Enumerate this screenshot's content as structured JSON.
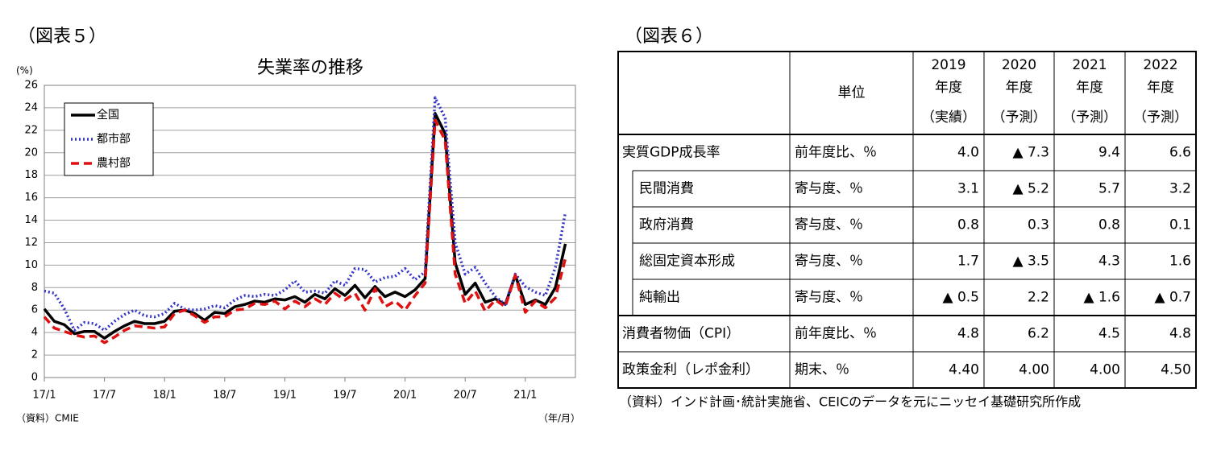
{
  "chart_data": {
    "type": "line",
    "figure_label": "（図表５）",
    "title": "失業率の推移",
    "y_unit": "(%)",
    "x_unit": "（年/月）",
    "source": "（資料）CMIE",
    "categories": [
      "17/1",
      null,
      null,
      null,
      null,
      null,
      "17/7",
      null,
      null,
      null,
      null,
      null,
      "18/1",
      null,
      null,
      null,
      null,
      null,
      "18/7",
      null,
      null,
      null,
      null,
      null,
      "19/1",
      null,
      null,
      null,
      null,
      null,
      "19/7",
      null,
      null,
      null,
      null,
      null,
      "20/1",
      null,
      null,
      null,
      null,
      null,
      "20/7",
      null,
      null,
      null,
      null,
      null,
      "21/1",
      null,
      null,
      null,
      null
    ],
    "ylim": [
      0,
      26
    ],
    "yticks": [
      0,
      2,
      4,
      6,
      8,
      10,
      12,
      14,
      16,
      18,
      20,
      22,
      24,
      26
    ],
    "grid": true,
    "legend": "upper left",
    "series": [
      {
        "name": "全国",
        "color": "#000000",
        "linestyle": "solid",
        "values": [
          6.1,
          5.0,
          4.7,
          3.9,
          4.1,
          4.1,
          3.5,
          4.1,
          4.6,
          5.0,
          4.8,
          4.8,
          5.0,
          5.9,
          6.0,
          5.7,
          5.1,
          5.8,
          5.7,
          6.3,
          6.5,
          6.8,
          6.7,
          7.0,
          6.9,
          7.2,
          6.7,
          7.4,
          7.0,
          7.9,
          7.3,
          8.2,
          7.1,
          8.1,
          7.2,
          7.6,
          7.2,
          7.8,
          8.8,
          23.5,
          21.7,
          10.2,
          7.4,
          8.4,
          6.7,
          7.0,
          6.5,
          9.1,
          6.5,
          6.9,
          6.5,
          8.0,
          11.9
        ]
      },
      {
        "name": "都市部",
        "color": "#3535c8",
        "linestyle": "dotted",
        "values": [
          7.7,
          7.5,
          6.1,
          4.2,
          4.9,
          4.8,
          4.2,
          5.0,
          5.6,
          6.0,
          5.5,
          5.4,
          5.7,
          6.6,
          6.1,
          6.0,
          6.1,
          6.4,
          6.2,
          6.9,
          7.3,
          7.2,
          7.4,
          7.3,
          7.8,
          8.6,
          7.6,
          7.7,
          7.5,
          8.6,
          8.2,
          9.7,
          9.6,
          8.5,
          8.9,
          9.0,
          9.7,
          8.7,
          9.4,
          24.9,
          23.1,
          12.0,
          9.2,
          9.8,
          8.4,
          7.2,
          6.5,
          9.2,
          8.1,
          7.6,
          7.3,
          9.8,
          14.7
        ]
      },
      {
        "name": "農村部",
        "color": "#e01010",
        "linestyle": "dashed",
        "values": [
          5.4,
          4.4,
          4.1,
          3.8,
          3.6,
          3.7,
          3.1,
          3.6,
          4.2,
          4.6,
          4.5,
          4.4,
          4.5,
          5.7,
          6.0,
          5.5,
          4.9,
          5.4,
          5.4,
          6.0,
          6.1,
          6.6,
          6.5,
          6.8,
          6.1,
          6.8,
          6.3,
          7.0,
          6.5,
          7.5,
          6.9,
          7.5,
          6.0,
          7.9,
          6.3,
          6.8,
          6.0,
          7.3,
          8.4,
          22.9,
          21.1,
          9.2,
          6.6,
          7.7,
          5.9,
          6.9,
          6.3,
          9.1,
          5.8,
          6.8,
          6.2,
          7.1,
          10.6
        ]
      }
    ]
  },
  "table": {
    "figure_label": "（図表６）",
    "header": {
      "unit": "単位",
      "years": [
        {
          "year": "2019",
          "label": "年度",
          "status": "（実績）"
        },
        {
          "year": "2020",
          "label": "年度",
          "status": "（予測）"
        },
        {
          "year": "2021",
          "label": "年度",
          "status": "（予測）"
        },
        {
          "year": "2022",
          "label": "年度",
          "status": "（予測）"
        }
      ]
    },
    "rows": [
      {
        "label": "実質GDP成長率",
        "unit": "前年度比、％",
        "values": [
          "4.0",
          "▲ 7.3",
          "9.4",
          "6.6"
        ],
        "components": [
          {
            "label": "民間消費",
            "unit": "寄与度、％",
            "values": [
              "3.1",
              "▲ 5.2",
              "5.7",
              "3.2"
            ]
          },
          {
            "label": "政府消費",
            "unit": "寄与度、％",
            "values": [
              "0.8",
              "0.3",
              "0.8",
              "0.1"
            ]
          },
          {
            "label": "総固定資本形成",
            "unit": "寄与度、％",
            "values": [
              "1.7",
              "▲ 3.5",
              "4.3",
              "1.6"
            ]
          },
          {
            "label": "純輸出",
            "unit": "寄与度、％",
            "values": [
              "▲ 0.5",
              "2.2",
              "▲ 1.6",
              "▲ 0.7"
            ]
          }
        ]
      },
      {
        "label": "消費者物価（CPI）",
        "unit": "前年度比、％",
        "values": [
          "4.8",
          "6.2",
          "4.5",
          "4.8"
        ]
      },
      {
        "label": "政策金利（レポ金利）",
        "unit": "期末、％",
        "values": [
          "4.40",
          "4.00",
          "4.00",
          "4.50"
        ]
      }
    ],
    "source": "（資料）インド計画･統計実施省、CEICのデータを元にニッセイ基礎研究所作成"
  }
}
